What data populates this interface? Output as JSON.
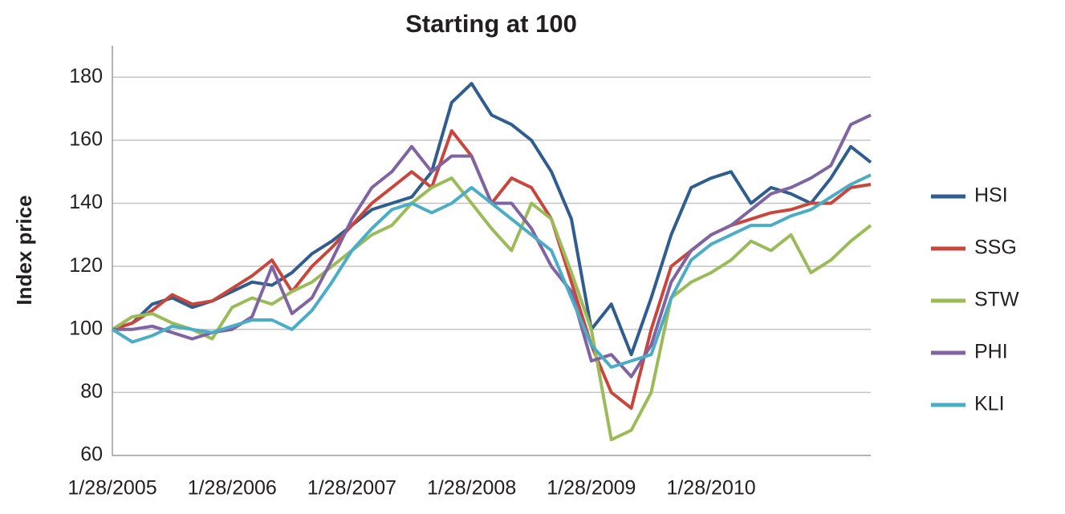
{
  "chart_data": {
    "type": "line",
    "title": "Starting at 100",
    "y_label": "Index price",
    "categories": [
      "1/28/2005",
      null,
      null,
      null,
      null,
      null,
      "1/28/2006",
      null,
      null,
      null,
      null,
      null,
      "1/28/2007",
      null,
      null,
      null,
      null,
      null,
      "1/28/2008",
      null,
      null,
      null,
      null,
      null,
      "1/28/2009",
      null,
      null,
      null,
      null,
      null,
      "1/28/2010",
      null,
      null,
      null,
      null,
      null,
      null,
      null,
      null
    ],
    "ylim": [
      60,
      190
    ],
    "yticks": [
      60,
      80,
      100,
      120,
      140,
      160,
      180
    ],
    "grid": true,
    "legend": "right",
    "series": [
      {
        "name": "HSI",
        "color": "#2e5d8e",
        "values": [
          100,
          102,
          108,
          110,
          107,
          109,
          112,
          115,
          114,
          118,
          124,
          128,
          133,
          138,
          140,
          142,
          150,
          172,
          178,
          168,
          165,
          160,
          150,
          135,
          100,
          108,
          92,
          110,
          130,
          145,
          148,
          150,
          140,
          145,
          143,
          140,
          148,
          158,
          153
        ]
      },
      {
        "name": "SSG",
        "color": "#c9463d",
        "values": [
          100,
          102,
          106,
          111,
          108,
          109,
          113,
          117,
          122,
          112,
          120,
          126,
          133,
          140,
          145,
          150,
          145,
          163,
          155,
          140,
          148,
          145,
          135,
          115,
          95,
          80,
          75,
          100,
          120,
          125,
          130,
          133,
          135,
          137,
          138,
          140,
          140,
          145,
          146
        ]
      },
      {
        "name": "STW",
        "color": "#9bbb59",
        "values": [
          100,
          104,
          105,
          102,
          100,
          97,
          107,
          110,
          108,
          112,
          115,
          120,
          125,
          130,
          133,
          140,
          145,
          148,
          140,
          132,
          125,
          140,
          135,
          118,
          100,
          65,
          68,
          80,
          110,
          115,
          118,
          122,
          128,
          125,
          130,
          118,
          122,
          128,
          133
        ]
      },
      {
        "name": "PHI",
        "color": "#8064a2",
        "values": [
          100,
          100,
          101,
          99,
          97,
          99,
          100,
          104,
          120,
          105,
          110,
          122,
          135,
          145,
          150,
          158,
          150,
          155,
          155,
          140,
          140,
          132,
          120,
          112,
          90,
          92,
          85,
          95,
          115,
          125,
          130,
          133,
          138,
          143,
          145,
          148,
          152,
          165,
          168
        ]
      },
      {
        "name": "KLI",
        "color": "#4bacc6",
        "values": [
          100,
          96,
          98,
          101,
          100,
          99,
          101,
          103,
          103,
          100,
          106,
          115,
          125,
          132,
          138,
          140,
          137,
          140,
          145,
          140,
          135,
          130,
          125,
          110,
          95,
          88,
          90,
          92,
          110,
          122,
          127,
          130,
          133,
          133,
          136,
          138,
          142,
          146,
          149
        ]
      }
    ]
  }
}
